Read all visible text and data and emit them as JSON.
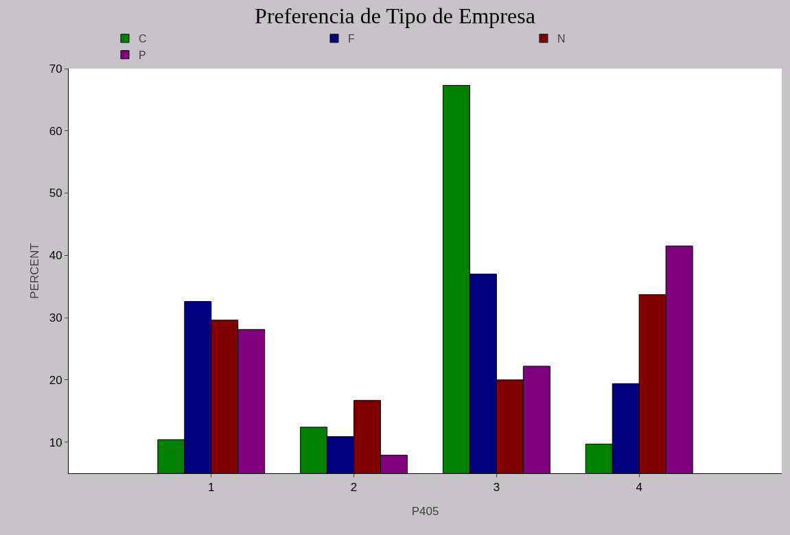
{
  "chart_data": {
    "type": "bar",
    "title": "Preferencia de Tipo de Empresa",
    "xlabel": "P405",
    "ylabel": "PERCENT",
    "categories": [
      "1",
      "2",
      "3",
      "4"
    ],
    "series": [
      {
        "name": "C",
        "color": "#008000",
        "values": [
          10.4,
          12.4,
          67.3,
          9.7
        ]
      },
      {
        "name": "F",
        "color": "#000080",
        "values": [
          32.6,
          10.9,
          37.0,
          19.4
        ]
      },
      {
        "name": "N",
        "color": "#800000",
        "values": [
          29.6,
          16.7,
          20.0,
          33.7
        ]
      },
      {
        "name": "P",
        "color": "#800080",
        "values": [
          28.1,
          7.9,
          22.2,
          41.5
        ]
      }
    ],
    "ylim": [
      5,
      70
    ],
    "yticks": [
      10,
      20,
      30,
      40,
      50,
      60,
      70
    ],
    "grid": false,
    "legend": "top"
  }
}
